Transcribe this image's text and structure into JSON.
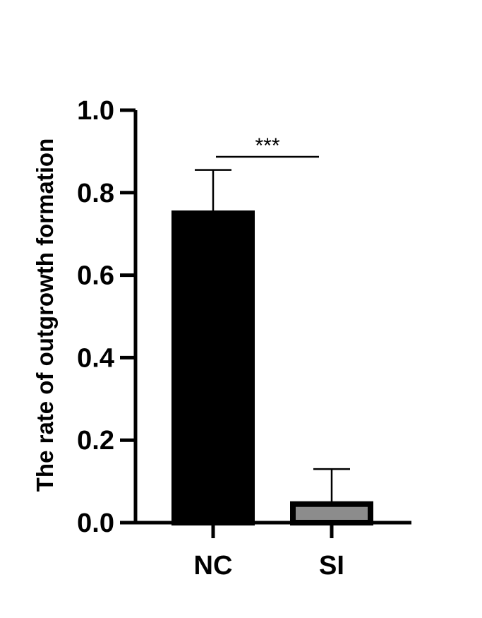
{
  "chart_data": {
    "type": "bar",
    "title": "",
    "xlabel": "",
    "ylabel": "The rate of outgrowth formation",
    "ylim": [
      0,
      1.0
    ],
    "yticks": [
      0.0,
      0.2,
      0.4,
      0.6,
      0.8,
      1.0
    ],
    "ytick_labels": [
      "0.0",
      "0.2",
      "0.4",
      "0.6",
      "0.8",
      "1.0"
    ],
    "categories": [
      "NC",
      "SI"
    ],
    "values": [
      0.75,
      0.045
    ],
    "error_upper": [
      0.855,
      0.13
    ],
    "bar_fill_colors": [
      "#000000",
      "#8c8c8c"
    ],
    "bar_edge_color": "#000000",
    "grid": false,
    "legend": "none",
    "significance": {
      "label": "***",
      "between": [
        "NC",
        "SI"
      ]
    }
  }
}
